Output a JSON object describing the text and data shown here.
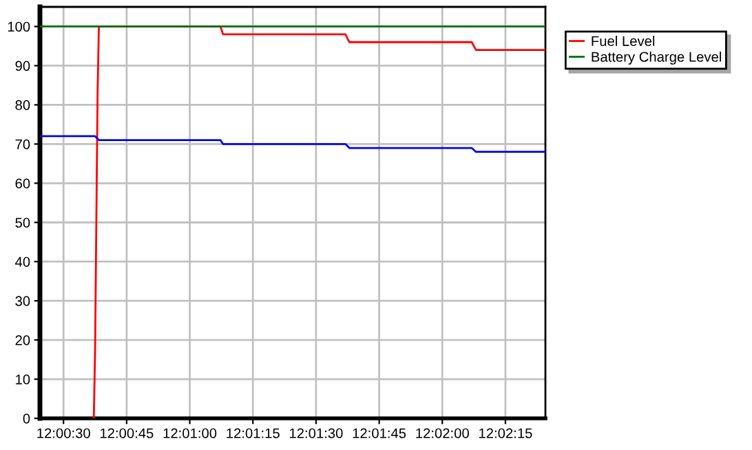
{
  "chart_data": {
    "type": "line",
    "xlim": [
      12.006778,
      12.040139
    ],
    "xticks": [
      {
        "value": 12.008333,
        "label": "12:00:30"
      },
      {
        "value": 12.0125,
        "label": "12:00:45"
      },
      {
        "value": 12.016667,
        "label": "12:01:00"
      },
      {
        "value": 12.020833,
        "label": "12:01:15"
      },
      {
        "value": 12.025,
        "label": "12:01:30"
      },
      {
        "value": 12.029167,
        "label": "12:01:45"
      },
      {
        "value": 12.033333,
        "label": "12:02:00"
      },
      {
        "value": 12.0375,
        "label": "12:02:15"
      }
    ],
    "ylim": [
      0,
      105
    ],
    "yticks": [
      0,
      10,
      20,
      30,
      40,
      50,
      60,
      70,
      80,
      90,
      100
    ],
    "grid": true,
    "legend": "top right",
    "line_style": "solid",
    "marker": "none",
    "series": [
      {
        "name": "Fuel Level",
        "color": "#ff0000",
        "x": [
          12.010333,
          12.010417,
          12.0105,
          12.010583,
          12.010667,
          12.018694,
          12.018861,
          12.026944,
          12.027194,
          12.035278,
          12.035556,
          12.040139
        ],
        "values": [
          0,
          17,
          50,
          83,
          100,
          100,
          98,
          98,
          96,
          96,
          94,
          94
        ]
      },
      {
        "color": "#0000ff",
        "x": [
          12.006778,
          12.010417,
          12.010667,
          12.018694,
          12.018861,
          12.026944,
          12.027194,
          12.035278,
          12.035556,
          12.040139
        ],
        "values": [
          72,
          72,
          71,
          71,
          70,
          70,
          69,
          69,
          68,
          68
        ]
      },
      {
        "name": "Battery Charge Level",
        "color": "#007000",
        "x": [
          12.006778,
          12.040139
        ],
        "values": [
          100,
          100
        ]
      }
    ]
  }
}
